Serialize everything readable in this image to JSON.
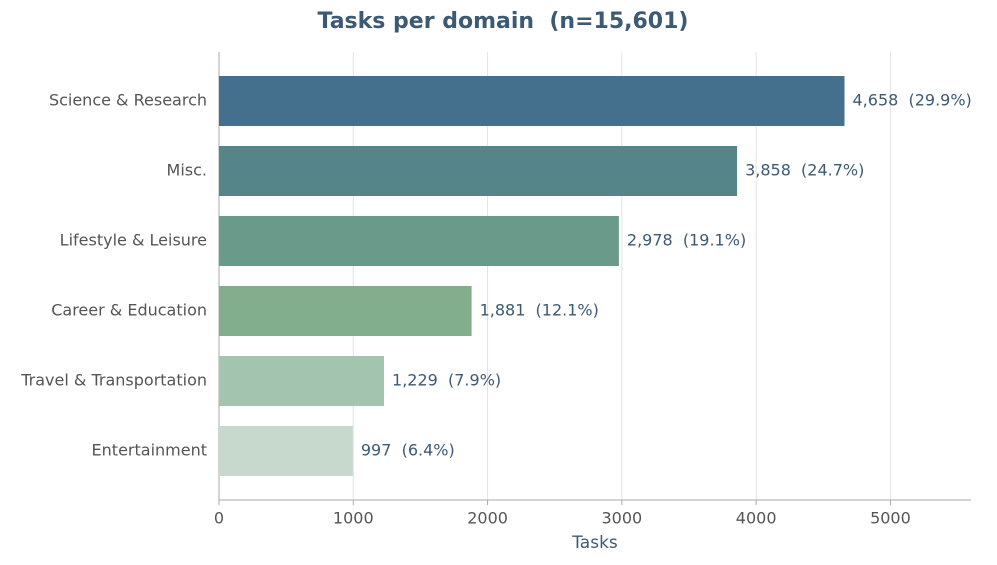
{
  "chart_data": {
    "type": "barh",
    "title": "Tasks per domain  (n=15,601)",
    "xlabel": "Tasks",
    "categories": [
      "Science & Research",
      "Misc.",
      "Lifestyle & Leisure",
      "Career & Education",
      "Travel & Transportation",
      "Entertainment"
    ],
    "values": [
      4658,
      3858,
      2978,
      1881,
      1229,
      997
    ],
    "value_labels": [
      "4,658  (29.9%)",
      "3,858  (24.7%)",
      "2,978  (19.1%)",
      "1,881  (12.1%)",
      "1,229  (7.9%)",
      "997  (6.4%)"
    ],
    "colors": [
      "#44708e",
      "#558489",
      "#6a9a89",
      "#82ae8e",
      "#a3c4ae",
      "#c6d9cc"
    ],
    "xlim": [
      0,
      5600
    ],
    "xticks": [
      0,
      1000,
      2000,
      3000,
      4000,
      5000
    ],
    "grid": true
  }
}
